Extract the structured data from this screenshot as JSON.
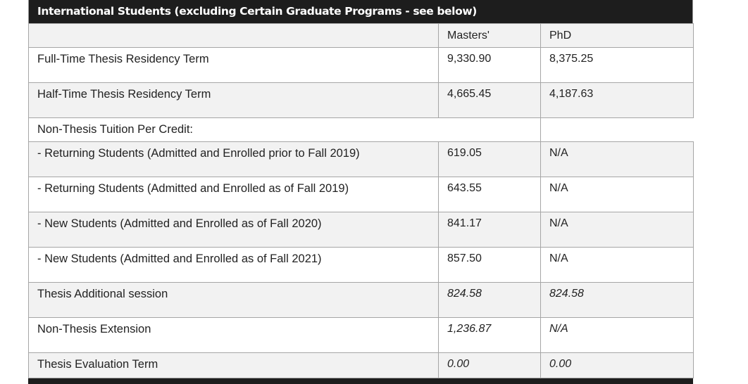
{
  "table": {
    "title": "International Students (excluding Certain Graduate Programs - see below)",
    "headers": [
      "",
      "Masters'",
      "PhD"
    ],
    "group_label": "Non-Thesis Tuition Per Credit:",
    "rows": [
      {
        "label": "Full-Time Thesis Residency Term",
        "masters": "9,330.90",
        "phd": "8,375.25"
      },
      {
        "label": "Half-Time Thesis Residency Term",
        "masters": "4,665.45",
        "phd": "4,187.63"
      },
      {
        "label": "- Returning Students (Admitted and Enrolled prior to Fall 2019)",
        "masters": "619.05",
        "phd": "N/A"
      },
      {
        "label": "- Returning Students (Admitted and Enrolled as of Fall 2019)",
        "masters": "643.55",
        "phd": "N/A"
      },
      {
        "label": "- New Students (Admitted and Enrolled as of Fall 2020)",
        "masters": "841.17",
        "phd": "N/A"
      },
      {
        "label": "- New Students (Admitted and Enrolled as of Fall 2021)",
        "masters": "857.50",
        "phd": "N/A"
      },
      {
        "label": "Thesis Additional session",
        "masters": "824.58",
        "phd": "824.58"
      },
      {
        "label": "Non-Thesis Extension",
        "masters": "1,236.87",
        "phd": "N/A"
      },
      {
        "label": "Thesis Evaluation Term",
        "masters": "0.00",
        "phd": "0.00"
      }
    ]
  }
}
